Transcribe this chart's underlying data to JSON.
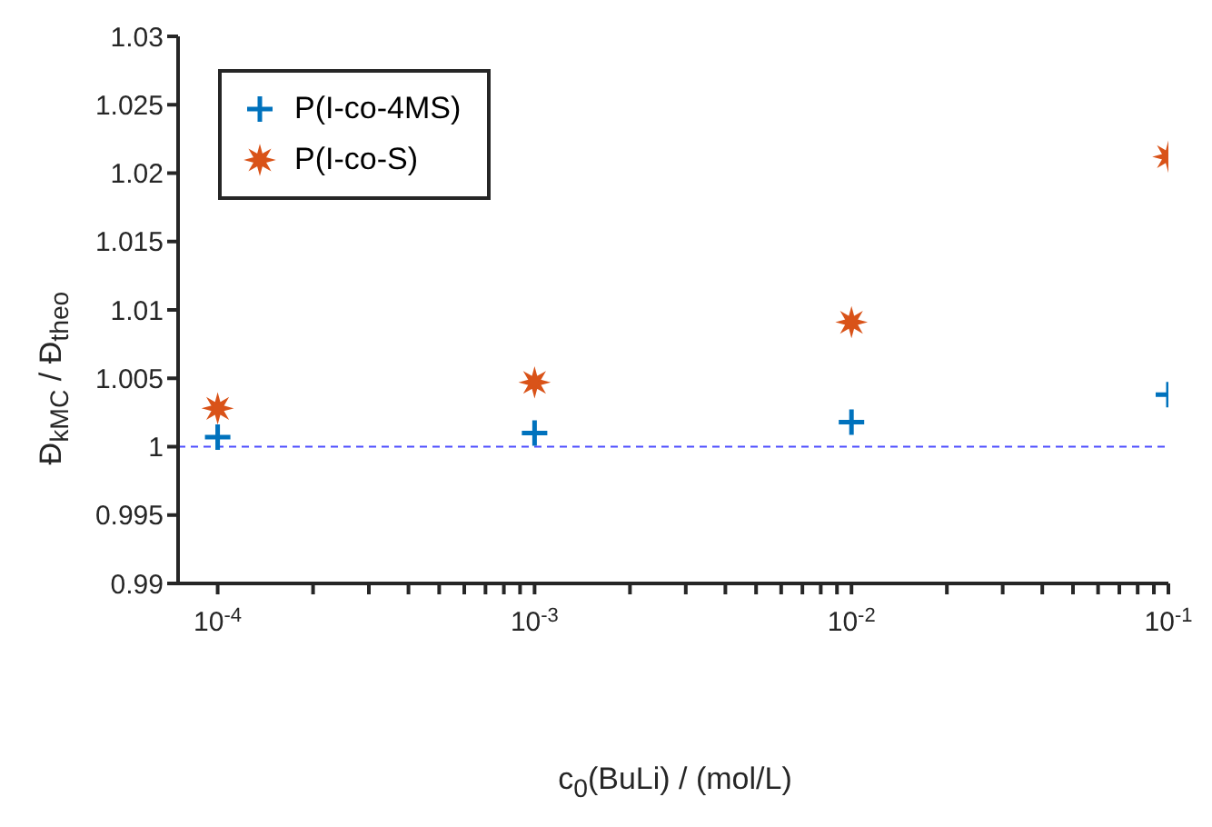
{
  "chart_data": {
    "type": "scatter",
    "xlabel": "c$_{0}$(BuLi) / (mol/L)",
    "ylabel": "Đ$_{kMC}$ / Đ$_{theo}$",
    "x": [
      0.0001,
      0.001,
      0.01,
      0.1
    ],
    "series": [
      {
        "name": "P(I-co-4MS)",
        "color": "#0072bd",
        "marker": "cross",
        "values": [
          1.0007,
          1.001,
          1.0018,
          1.0038
        ]
      },
      {
        "name": "P(I-co-S)",
        "color": "#d95319",
        "marker": "star",
        "values": [
          1.0028,
          1.0047,
          1.0091,
          1.0212
        ]
      }
    ],
    "log": "x",
    "xlim": [
      7.5e-05,
      0.1
    ],
    "xticks": [
      {
        "value": 0.0001,
        "label": "10$^{-4}$"
      },
      {
        "value": 0.0002,
        "label": null
      },
      {
        "value": 0.0003,
        "label": null
      },
      {
        "value": 0.0004,
        "label": null
      },
      {
        "value": 0.0005,
        "label": null
      },
      {
        "value": 0.0006,
        "label": null
      },
      {
        "value": 0.0007,
        "label": null
      },
      {
        "value": 0.0008,
        "label": null
      },
      {
        "value": 0.0009,
        "label": null
      },
      {
        "value": 0.001,
        "label": "10$^{-3}$"
      },
      {
        "value": 0.002,
        "label": null
      },
      {
        "value": 0.003,
        "label": null
      },
      {
        "value": 0.004,
        "label": null
      },
      {
        "value": 0.005,
        "label": null
      },
      {
        "value": 0.006,
        "label": null
      },
      {
        "value": 0.007,
        "label": null
      },
      {
        "value": 0.008,
        "label": null
      },
      {
        "value": 0.009,
        "label": null
      },
      {
        "value": 0.01,
        "label": "10$^{-2}$"
      },
      {
        "value": 0.02,
        "label": null
      },
      {
        "value": 0.03,
        "label": null
      },
      {
        "value": 0.04,
        "label": null
      },
      {
        "value": 0.05,
        "label": null
      },
      {
        "value": 0.06,
        "label": null
      },
      {
        "value": 0.07,
        "label": null
      },
      {
        "value": 0.08,
        "label": null
      },
      {
        "value": 0.09,
        "label": null
      },
      {
        "value": 0.1,
        "label": "10$^{-1}$"
      }
    ],
    "ylim": [
      0.99,
      1.03
    ],
    "yticks": [
      0.99,
      0.995,
      1,
      1.005,
      1.01,
      1.015,
      1.02,
      1.025,
      1.03
    ],
    "ref_lines": [
      {
        "axis": "y",
        "value": 1,
        "color": "#4d4dff",
        "line_style": "dashed"
      }
    ],
    "grid": false,
    "legend": "top left"
  }
}
